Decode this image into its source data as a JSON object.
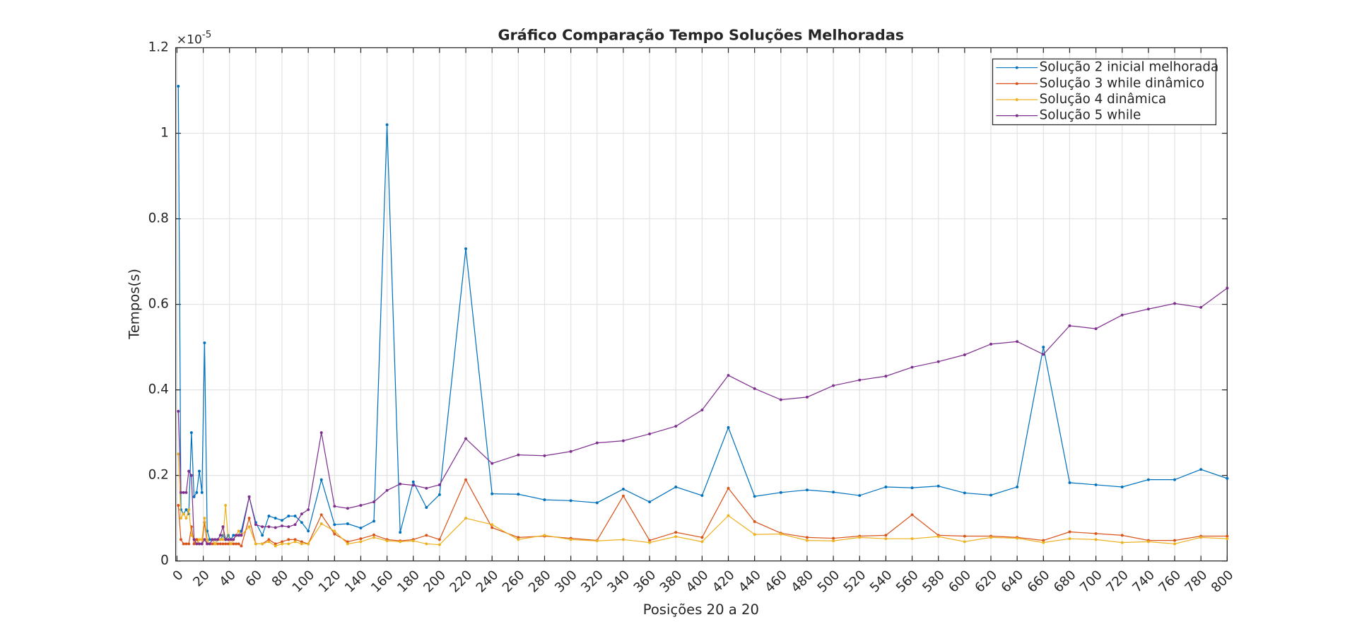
{
  "chart_data": {
    "type": "line",
    "title": "Gráfico Comparação Tempo Soluções Melhoradas",
    "x_label": "Posições 20 a 20",
    "y_label": "Tempos(s)",
    "y_multiplier": "×10",
    "y_multiplier_exponent": "-5",
    "x": [
      1,
      3,
      5,
      7,
      9,
      11,
      13,
      15,
      17,
      19,
      21,
      23,
      25,
      27,
      29,
      31,
      33,
      35,
      37,
      39,
      41,
      43,
      45,
      47,
      49,
      55,
      60,
      65,
      70,
      75,
      80,
      85,
      90,
      95,
      100,
      110,
      120,
      130,
      140,
      150,
      160,
      170,
      180,
      190,
      200,
      220,
      240,
      260,
      280,
      300,
      320,
      340,
      360,
      380,
      400,
      420,
      440,
      460,
      480,
      500,
      520,
      540,
      560,
      580,
      600,
      620,
      640,
      660,
      680,
      700,
      720,
      740,
      760,
      780,
      800
    ],
    "series": [
      {
        "name": "Solução 2 inicial melhorada",
        "color": "#0072BD",
        "values": [
          1.11,
          0.12,
          0.11,
          0.12,
          0.11,
          0.3,
          0.15,
          0.16,
          0.21,
          0.16,
          0.51,
          0.07,
          0.05,
          0.05,
          0.04,
          0.05,
          0.05,
          0.06,
          0.05,
          0.06,
          0.05,
          0.06,
          0.06,
          0.06,
          0.07,
          0.15,
          0.09,
          0.06,
          0.105,
          0.1,
          0.095,
          0.105,
          0.105,
          0.09,
          0.07,
          0.19,
          0.085,
          0.087,
          0.077,
          0.093,
          1.02,
          0.067,
          0.185,
          0.125,
          0.155,
          0.73,
          0.157,
          0.156,
          0.143,
          0.141,
          0.136,
          0.168,
          0.138,
          0.173,
          0.153,
          0.312,
          0.151,
          0.16,
          0.166,
          0.161,
          0.153,
          0.173,
          0.171,
          0.175,
          0.159,
          0.154,
          0.173,
          0.5,
          0.183,
          0.178,
          0.173,
          0.19,
          0.19,
          0.214,
          0.193
        ]
      },
      {
        "name": "Solução 3 while dinâmico",
        "color": "#D95319",
        "values": [
          0.13,
          0.05,
          0.04,
          0.04,
          0.04,
          0.08,
          0.04,
          0.05,
          0.04,
          0.04,
          0.09,
          0.04,
          0.04,
          0.04,
          0.04,
          0.04,
          0.04,
          0.04,
          0.04,
          0.04,
          0.04,
          0.04,
          0.04,
          0.04,
          0.035,
          0.1,
          0.04,
          0.04,
          0.05,
          0.04,
          0.045,
          0.05,
          0.05,
          0.045,
          0.04,
          0.108,
          0.063,
          0.045,
          0.052,
          0.061,
          0.05,
          0.047,
          0.05,
          0.06,
          0.05,
          0.19,
          0.078,
          0.055,
          0.058,
          0.053,
          0.048,
          0.152,
          0.048,
          0.067,
          0.055,
          0.17,
          0.092,
          0.065,
          0.055,
          0.053,
          0.058,
          0.06,
          0.108,
          0.06,
          0.058,
          0.058,
          0.055,
          0.048,
          0.068,
          0.064,
          0.06,
          0.048,
          0.048,
          0.058,
          0.058
        ]
      },
      {
        "name": "Solução 4 dinâmica",
        "color": "#EDB120",
        "values": [
          0.25,
          0.1,
          0.11,
          0.1,
          0.12,
          0.06,
          0.05,
          0.04,
          0.05,
          0.05,
          0.1,
          0.05,
          0.04,
          0.05,
          0.04,
          0.05,
          0.05,
          0.05,
          0.13,
          0.05,
          0.04,
          0.05,
          0.06,
          0.07,
          0.06,
          0.08,
          0.04,
          0.04,
          0.045,
          0.035,
          0.04,
          0.04,
          0.045,
          0.04,
          0.04,
          0.087,
          0.07,
          0.04,
          0.045,
          0.055,
          0.047,
          0.045,
          0.047,
          0.04,
          0.038,
          0.1,
          0.085,
          0.05,
          0.06,
          0.05,
          0.047,
          0.05,
          0.043,
          0.057,
          0.045,
          0.106,
          0.062,
          0.063,
          0.048,
          0.047,
          0.055,
          0.052,
          0.052,
          0.057,
          0.045,
          0.055,
          0.053,
          0.043,
          0.052,
          0.05,
          0.043,
          0.045,
          0.04,
          0.055,
          0.052
        ]
      },
      {
        "name": "Solução 5 while",
        "color": "#7E2F8E",
        "values": [
          0.35,
          0.16,
          0.16,
          0.16,
          0.21,
          0.2,
          0.05,
          0.04,
          0.04,
          0.04,
          0.05,
          0.04,
          0.04,
          0.05,
          0.05,
          0.05,
          0.06,
          0.08,
          0.05,
          0.05,
          0.05,
          0.05,
          0.06,
          0.06,
          0.06,
          0.15,
          0.085,
          0.08,
          0.08,
          0.078,
          0.082,
          0.08,
          0.085,
          0.11,
          0.12,
          0.3,
          0.128,
          0.123,
          0.13,
          0.138,
          0.165,
          0.18,
          0.177,
          0.17,
          0.178,
          0.286,
          0.228,
          0.248,
          0.246,
          0.256,
          0.276,
          0.281,
          0.297,
          0.315,
          0.353,
          0.434,
          0.403,
          0.377,
          0.383,
          0.41,
          0.423,
          0.432,
          0.453,
          0.466,
          0.482,
          0.507,
          0.513,
          0.483,
          0.55,
          0.543,
          0.575,
          0.589,
          0.602,
          0.593,
          0.638
        ]
      }
    ],
    "xlim": [
      -1,
      800
    ],
    "ylim": [
      0,
      1.2
    ],
    "xticks": [
      0,
      20,
      40,
      60,
      80,
      100,
      120,
      140,
      160,
      180,
      200,
      220,
      240,
      260,
      280,
      300,
      320,
      340,
      360,
      380,
      400,
      420,
      440,
      460,
      480,
      500,
      520,
      540,
      560,
      580,
      600,
      620,
      640,
      660,
      680,
      700,
      720,
      740,
      760,
      780,
      800
    ],
    "yticks": [
      0,
      0.2,
      0.4,
      0.6,
      0.8,
      1,
      1.2
    ],
    "grid": true,
    "legend": "northeast"
  }
}
